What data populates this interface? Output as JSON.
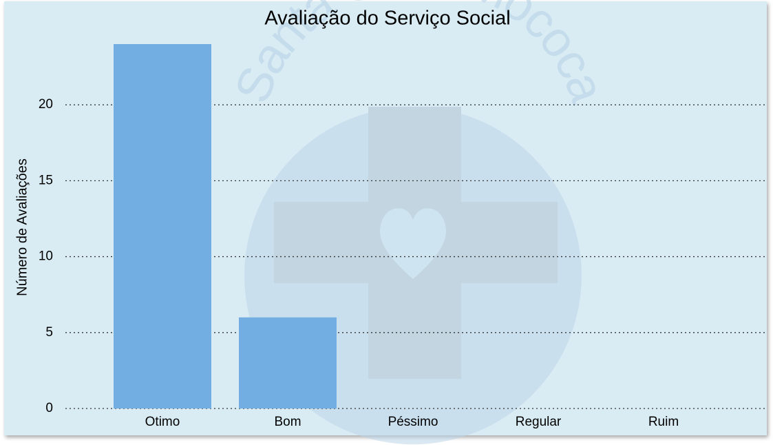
{
  "chart_data": {
    "type": "bar",
    "title": "Avaliação do Serviço Social",
    "watermark": "Santa Casa Mococa",
    "ylabel": "Número de Avaliações",
    "categories": [
      "Otimo",
      "Bom",
      "Péssimo",
      "Regular",
      "Ruim"
    ],
    "values": [
      24,
      6,
      0,
      0,
      0
    ],
    "color": "#72aee2",
    "ylim": [
      0,
      24
    ],
    "yticks": [
      0,
      5,
      10,
      15,
      20
    ],
    "grid": true
  }
}
